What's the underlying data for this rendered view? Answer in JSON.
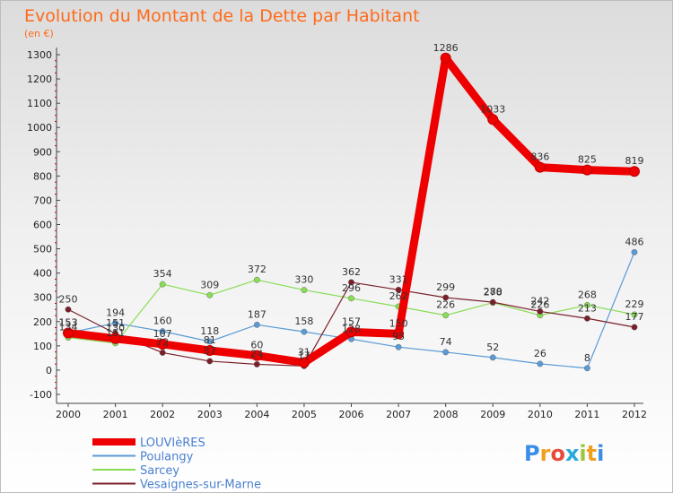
{
  "chart_data": {
    "type": "line",
    "title": "Evolution du Montant de la Dette par Habitant",
    "subtitle": "(en €)",
    "x": [
      "2000",
      "2001",
      "2002",
      "2003",
      "2004",
      "2005",
      "2006",
      "2007",
      "2008",
      "2009",
      "2010",
      "2011",
      "2012"
    ],
    "ylim": [
      -100,
      1300
    ],
    "yticks": [
      -100,
      0,
      100,
      200,
      300,
      400,
      500,
      600,
      700,
      800,
      900,
      1000,
      1100,
      1200,
      1300
    ],
    "grid": false,
    "legend_position": "bottom-left",
    "series": [
      {
        "name": "LOUVIèRES",
        "color": "#ee0000",
        "values": [
          153,
          130,
          107,
          81,
          60,
          31,
          157,
          150,
          1286,
          1033,
          836,
          825,
          819
        ]
      },
      {
        "name": "Poulangy",
        "color": "#5a9bd5",
        "values": [
          153,
          194,
          160,
          118,
          187,
          158,
          128,
          95,
          74,
          52,
          26,
          8,
          486
        ]
      },
      {
        "name": "Sarcey",
        "color": "#88dd55",
        "values": [
          134,
          111,
          354,
          309,
          372,
          330,
          296,
          262,
          226,
          278,
          226,
          268,
          229
        ]
      },
      {
        "name": "Vesaignes-sur-Marne",
        "color": "#7a1f2a",
        "values": [
          250,
          151,
          72,
          37,
          24,
          17,
          362,
          331,
          299,
          280,
          242,
          213,
          177
        ]
      }
    ]
  },
  "brand": {
    "letters": [
      "P",
      "r",
      "o",
      "x",
      "i",
      "t",
      "i"
    ],
    "colors": [
      "#3a8ee6",
      "#f0a020",
      "#e94a3a",
      "#2aa9d8",
      "#9ac83a",
      "#f0a020",
      "#3a8ee6"
    ]
  }
}
